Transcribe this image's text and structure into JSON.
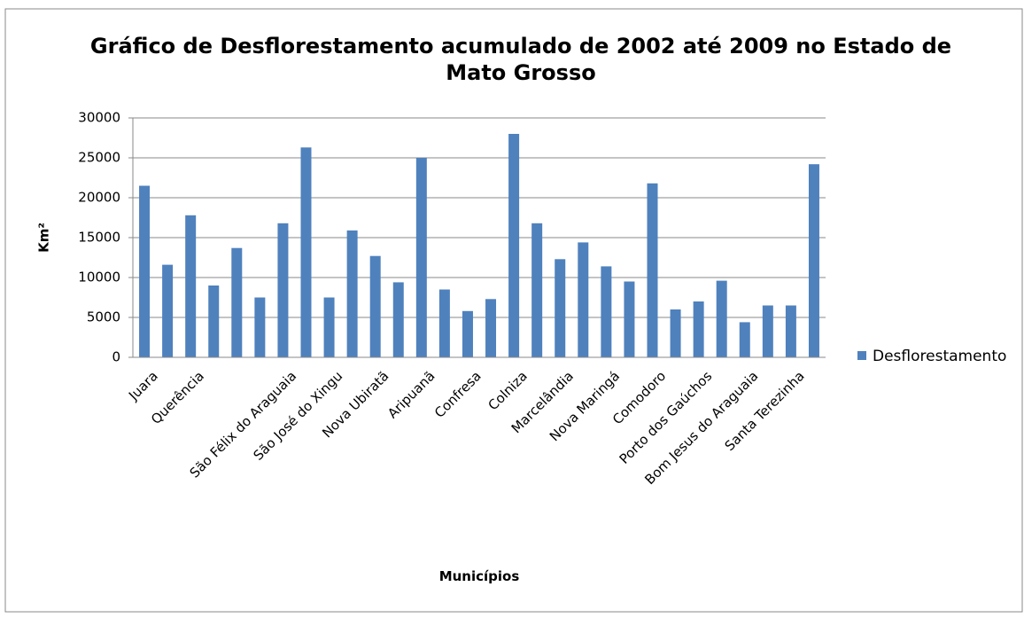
{
  "chart_data": {
    "type": "bar",
    "title": "Gráfico de Desflorestamento acumulado de 2002 até 2009 no Estado de Mato Grosso",
    "x_label": "Municípios",
    "y_label": "Km²",
    "categories": [
      "Juara",
      null,
      "Querência",
      null,
      null,
      null,
      "São Félix do Araguaia",
      null,
      "São José do Xingu",
      null,
      "Nova Ubiratã",
      null,
      "Aripuanã",
      null,
      "Confresa",
      null,
      "Colniza",
      null,
      "Marcelândia",
      null,
      "Nova Maringá",
      null,
      "Comodoro",
      null,
      "Porto dos Gaúchos",
      null,
      "Bom Jesus do Araguaia",
      null,
      "Santa Terezinha",
      null
    ],
    "series": [
      {
        "name": "Desflorestamento",
        "color": "#4f81bd",
        "values": [
          21500,
          11600,
          17800,
          9000,
          13700,
          7500,
          16800,
          26300,
          7500,
          15900,
          12700,
          9400,
          25000,
          8500,
          5800,
          7300,
          28000,
          16800,
          12300,
          14400,
          11400,
          9500,
          21800,
          6000,
          7000,
          9600,
          4400,
          6500,
          6500,
          24200
        ]
      }
    ],
    "ylim": [
      0,
      30000
    ],
    "yticks": [
      0,
      5000,
      10000,
      15000,
      20000,
      25000,
      30000
    ],
    "grid": true,
    "legend": "right"
  }
}
